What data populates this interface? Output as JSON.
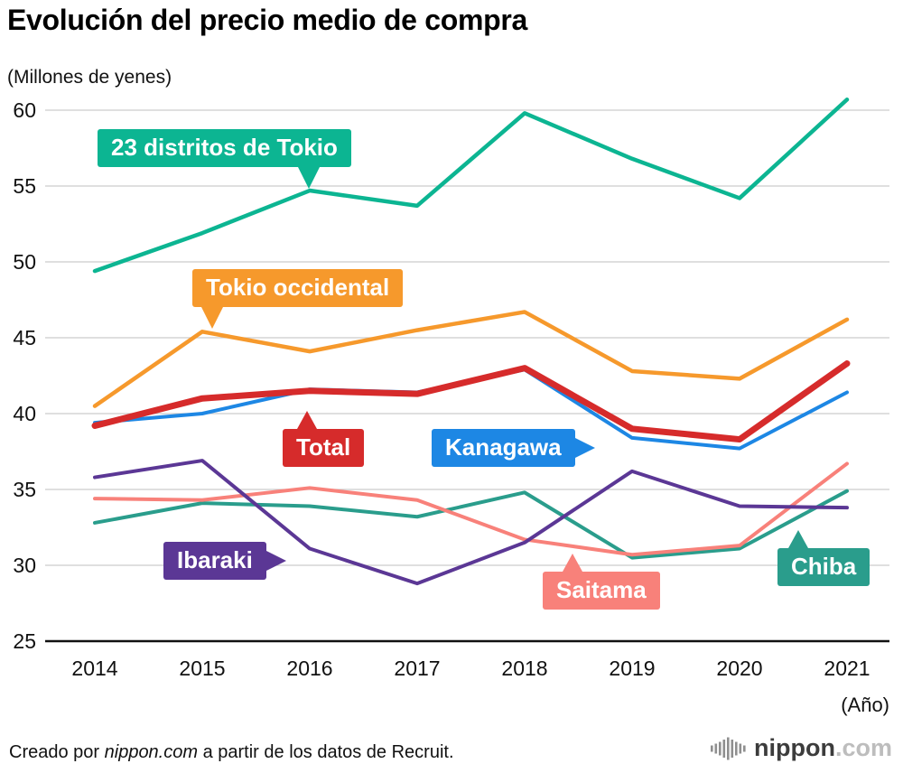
{
  "chart_data": {
    "type": "line",
    "title": "Evolución del precio medio de compra",
    "unit_label": "(Millones de yenes)",
    "xlabel": "(Año)",
    "x": [
      2014,
      2015,
      2016,
      2017,
      2018,
      2019,
      2020,
      2021
    ],
    "yticks": [
      25,
      30,
      35,
      40,
      45,
      50,
      55,
      60
    ],
    "ylim": [
      25,
      62
    ],
    "grid": "horizontal",
    "legend_position": "inline-callouts",
    "series": [
      {
        "name": "23 distritos de Tokio",
        "color": "#0cb592",
        "width": 4.5,
        "values": [
          49.4,
          51.9,
          54.7,
          53.7,
          59.8,
          56.8,
          54.2,
          60.7
        ]
      },
      {
        "name": "Tokio occidental",
        "color": "#f6992c",
        "width": 4.5,
        "values": [
          40.5,
          45.4,
          44.1,
          45.5,
          46.7,
          42.8,
          42.3,
          46.2
        ]
      },
      {
        "name": "Kanagawa",
        "color": "#1d87e4",
        "width": 4,
        "values": [
          39.4,
          40.0,
          41.6,
          41.4,
          42.9,
          38.4,
          37.7,
          41.4
        ]
      },
      {
        "name": "Chiba",
        "color": "#2a9d8c",
        "width": 4,
        "values": [
          32.8,
          34.1,
          33.9,
          33.2,
          34.8,
          30.5,
          31.1,
          34.9
        ]
      },
      {
        "name": "Saitama",
        "color": "#f8817a",
        "width": 4,
        "values": [
          34.4,
          34.3,
          35.1,
          34.3,
          31.7,
          30.7,
          31.3,
          36.7
        ]
      },
      {
        "name": "Ibaraki",
        "color": "#5b3795",
        "width": 4,
        "values": [
          35.8,
          36.9,
          31.1,
          28.8,
          31.5,
          36.2,
          33.9,
          33.8
        ]
      },
      {
        "name": "Total",
        "color": "#d62b2b",
        "width": 7,
        "values": [
          39.2,
          41.0,
          41.5,
          41.3,
          43.0,
          39.0,
          38.3,
          43.3
        ]
      }
    ],
    "labels": [
      {
        "text": "23 distritos de Tokio",
        "color": "#0cb592",
        "x": 108,
        "y": 143,
        "pointer": "bottom",
        "offset": 222
      },
      {
        "text": "Tokio occidental",
        "color": "#f6992c",
        "x": 213,
        "y": 298,
        "pointer": "bottom",
        "offset": 10
      },
      {
        "text": "Total",
        "color": "#d62b2b",
        "x": 313,
        "y": 475,
        "pointer": "top",
        "offset": 16
      },
      {
        "text": "Kanagawa",
        "color": "#1d87e4",
        "x": 478,
        "y": 475,
        "pointer": "right",
        "offset": 0
      },
      {
        "text": "Ibaraki",
        "color": "#5b3795",
        "x": 181,
        "y": 600,
        "pointer": "right",
        "offset": 0
      },
      {
        "text": "Saitama",
        "color": "#f8817a",
        "x": 601,
        "y": 633,
        "pointer": "top",
        "offset": 22
      },
      {
        "text": "Chiba",
        "color": "#2a9d8c",
        "x": 861,
        "y": 607,
        "pointer": "top",
        "offset": 12
      }
    ]
  },
  "footer": {
    "prefix": "Creado por ",
    "brand": "nippon.com",
    "suffix": " a partir de los datos de Recruit."
  },
  "logo": {
    "name": "nippon",
    "tld": ".com"
  }
}
